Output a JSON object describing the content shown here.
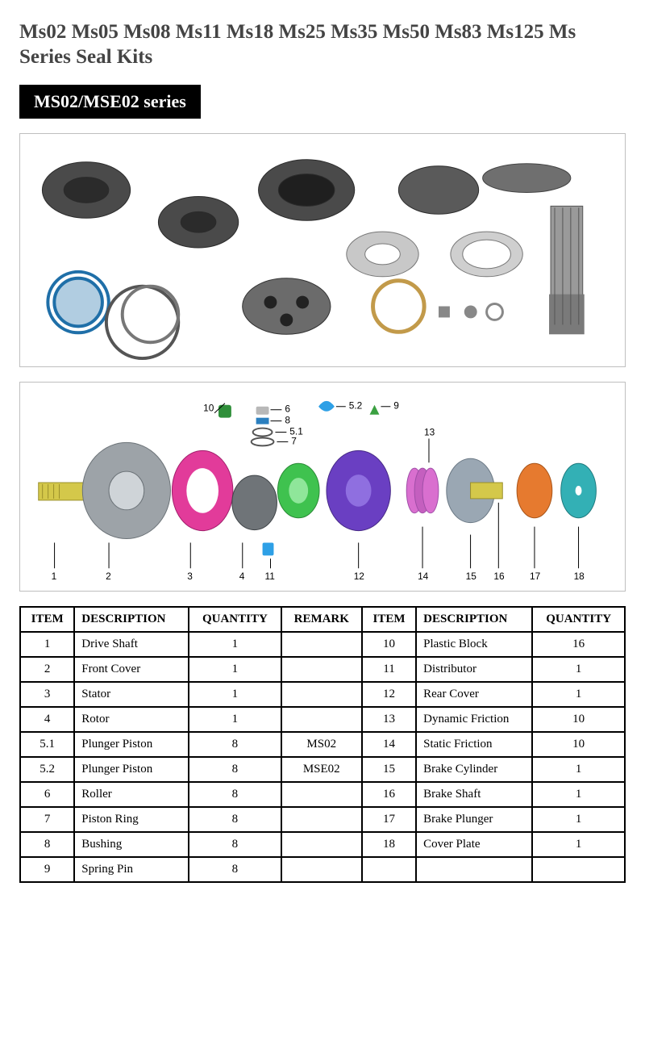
{
  "title": "Ms02 Ms05 Ms08 Ms11 Ms18 Ms25 Ms35 Ms50 Ms83 Ms125 Ms Series Seal Kits",
  "series_badge": "MS02/MSE02 series",
  "colors": {
    "title_text": "#444444",
    "badge_bg": "#000000",
    "badge_text": "#ffffff",
    "box_border": "#bfbfbf",
    "table_border": "#000000",
    "background": "#ffffff"
  },
  "diagram": {
    "type": "exploded-view",
    "callouts": [
      "1",
      "2",
      "3",
      "4",
      "5.1",
      "5.2",
      "6",
      "7",
      "8",
      "9",
      "10",
      "11",
      "12",
      "13",
      "14",
      "15",
      "16",
      "17",
      "18"
    ],
    "part_colors": {
      "1_shaft": "#d4c84a",
      "2_front_cover": "#9da3a8",
      "3_stator": "#e23b9a",
      "4_rotor": "#6f7478",
      "5_1_piston": "#2a2f33",
      "5_2_piston": "#2ea0e6",
      "6_roller": "#b8b8b8",
      "7_ring": "#555555",
      "8_bushing": "#2b7fbf",
      "9_spring_pin": "#3aa041",
      "10_plastic_block": "#2f8f3a",
      "11_distributor": "#3fc24f",
      "12_rear_cover": "#6a3fc2",
      "13_dynamic_friction": "#d96fcf",
      "14_static_friction": "#6a3fc2",
      "15_brake_cylinder": "#9aa7b3",
      "16_brake_shaft": "#d4c84a",
      "17_brake_plunger": "#e67a2f",
      "18_cover_plate": "#33b0b5"
    }
  },
  "table": {
    "headers": [
      "ITEM",
      "DESCRIPTION",
      "QUANTITY",
      "REMARK",
      "ITEM",
      "DESCRIPTION",
      "QUANTITY"
    ],
    "rows": [
      {
        "a_item": "1",
        "a_desc": "Drive Shaft",
        "a_qty": "1",
        "a_rem": "",
        "b_item": "10",
        "b_desc": "Plastic Block",
        "b_qty": "16"
      },
      {
        "a_item": "2",
        "a_desc": "Front Cover",
        "a_qty": "1",
        "a_rem": "",
        "b_item": "11",
        "b_desc": "Distributor",
        "b_qty": "1"
      },
      {
        "a_item": "3",
        "a_desc": "Stator",
        "a_qty": "1",
        "a_rem": "",
        "b_item": "12",
        "b_desc": "Rear Cover",
        "b_qty": "1"
      },
      {
        "a_item": "4",
        "a_desc": "Rotor",
        "a_qty": "1",
        "a_rem": "",
        "b_item": "13",
        "b_desc": "Dynamic Friction",
        "b_qty": "10"
      },
      {
        "a_item": "5.1",
        "a_desc": "Plunger Piston",
        "a_qty": "8",
        "a_rem": "MS02",
        "b_item": "14",
        "b_desc": "Static Friction",
        "b_qty": "10"
      },
      {
        "a_item": "5.2",
        "a_desc": "Plunger Piston",
        "a_qty": "8",
        "a_rem": "MSE02",
        "b_item": "15",
        "b_desc": "Brake Cylinder",
        "b_qty": "1"
      },
      {
        "a_item": "6",
        "a_desc": "Roller",
        "a_qty": "8",
        "a_rem": "",
        "b_item": "16",
        "b_desc": "Brake Shaft",
        "b_qty": "1"
      },
      {
        "a_item": "7",
        "a_desc": "Piston Ring",
        "a_qty": "8",
        "a_rem": "",
        "b_item": "17",
        "b_desc": "Brake Plunger",
        "b_qty": "1"
      },
      {
        "a_item": "8",
        "a_desc": "Bushing",
        "a_qty": "8",
        "a_rem": "",
        "b_item": "18",
        "b_desc": "Cover Plate",
        "b_qty": "1"
      },
      {
        "a_item": "9",
        "a_desc": "Spring Pin",
        "a_qty": "8",
        "a_rem": "",
        "b_item": "",
        "b_desc": "",
        "b_qty": ""
      }
    ],
    "col_align": [
      "c",
      "l",
      "c",
      "c",
      "c",
      "l",
      "c"
    ]
  }
}
